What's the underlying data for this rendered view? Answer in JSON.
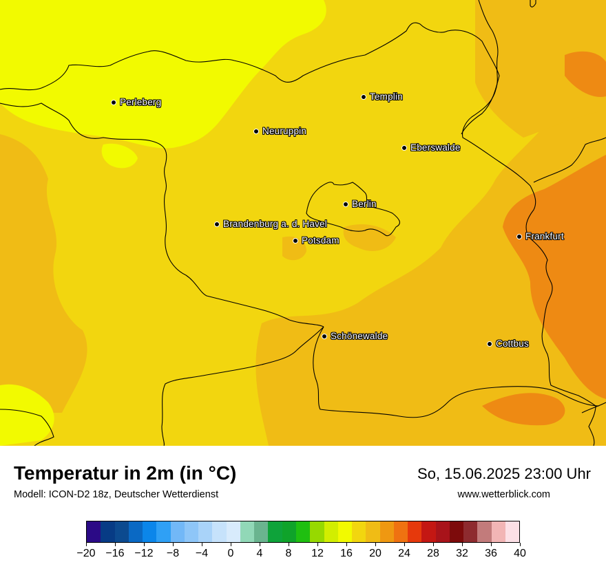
{
  "map": {
    "cities": [
      {
        "name": "Perleberg",
        "icon": "city-dot-icon"
      },
      {
        "name": "Templin",
        "icon": "city-dot-icon"
      },
      {
        "name": "Neuruppin",
        "icon": "city-dot-icon"
      },
      {
        "name": "Eberswalde",
        "icon": "city-dot-icon"
      },
      {
        "name": "Berlin",
        "icon": "city-dot-icon"
      },
      {
        "name": "Brandenburg a. d. Havel",
        "icon": "city-dot-icon"
      },
      {
        "name": "Potsdam",
        "icon": "city-dot-icon"
      },
      {
        "name": "Frankfurt",
        "icon": "city-dot-icon"
      },
      {
        "name": "Schönewalde",
        "icon": "city-dot-icon"
      },
      {
        "name": "Cottbus",
        "icon": "city-dot-icon"
      }
    ],
    "fill_colors": {
      "yellow": "#f2fa00",
      "gold": "#f2d60f",
      "amber": "#f0bc15",
      "orange": "#ee8a13"
    }
  },
  "header": {
    "title": "Temperatur in 2m (in °C)",
    "model": "Modell: ICON-D2 18z, Deutscher Wetterdienst",
    "datetime": "So, 15.06.2025 23:00 Uhr",
    "website": "www.wetterblick.com"
  },
  "legend": {
    "min": -20,
    "max": 40,
    "step": 2,
    "tick_labels": [
      "−20",
      "−16",
      "−12",
      "−8",
      "−4",
      "0",
      "4",
      "8",
      "12",
      "16",
      "20",
      "24",
      "28",
      "32",
      "36",
      "40"
    ],
    "colors": [
      "#2b0a86",
      "#073b85",
      "#0c4a8f",
      "#0a69c4",
      "#0b86ea",
      "#2fa0f5",
      "#72b8f7",
      "#8ec6f8",
      "#a9d3f9",
      "#c6e2fb",
      "#d8ebfc",
      "#91d8b7",
      "#6ab48f",
      "#0ea33a",
      "#0fa32a",
      "#1fbf10",
      "#97d900",
      "#d2ee00",
      "#f2fa00",
      "#f2d60f",
      "#f0bc15",
      "#ef9811",
      "#ef7211",
      "#e6390c",
      "#c41713",
      "#a8131a",
      "#7d0b0b",
      "#8e2b2f",
      "#c27b7b",
      "#f2b5b5",
      "#fce0e6"
    ]
  }
}
